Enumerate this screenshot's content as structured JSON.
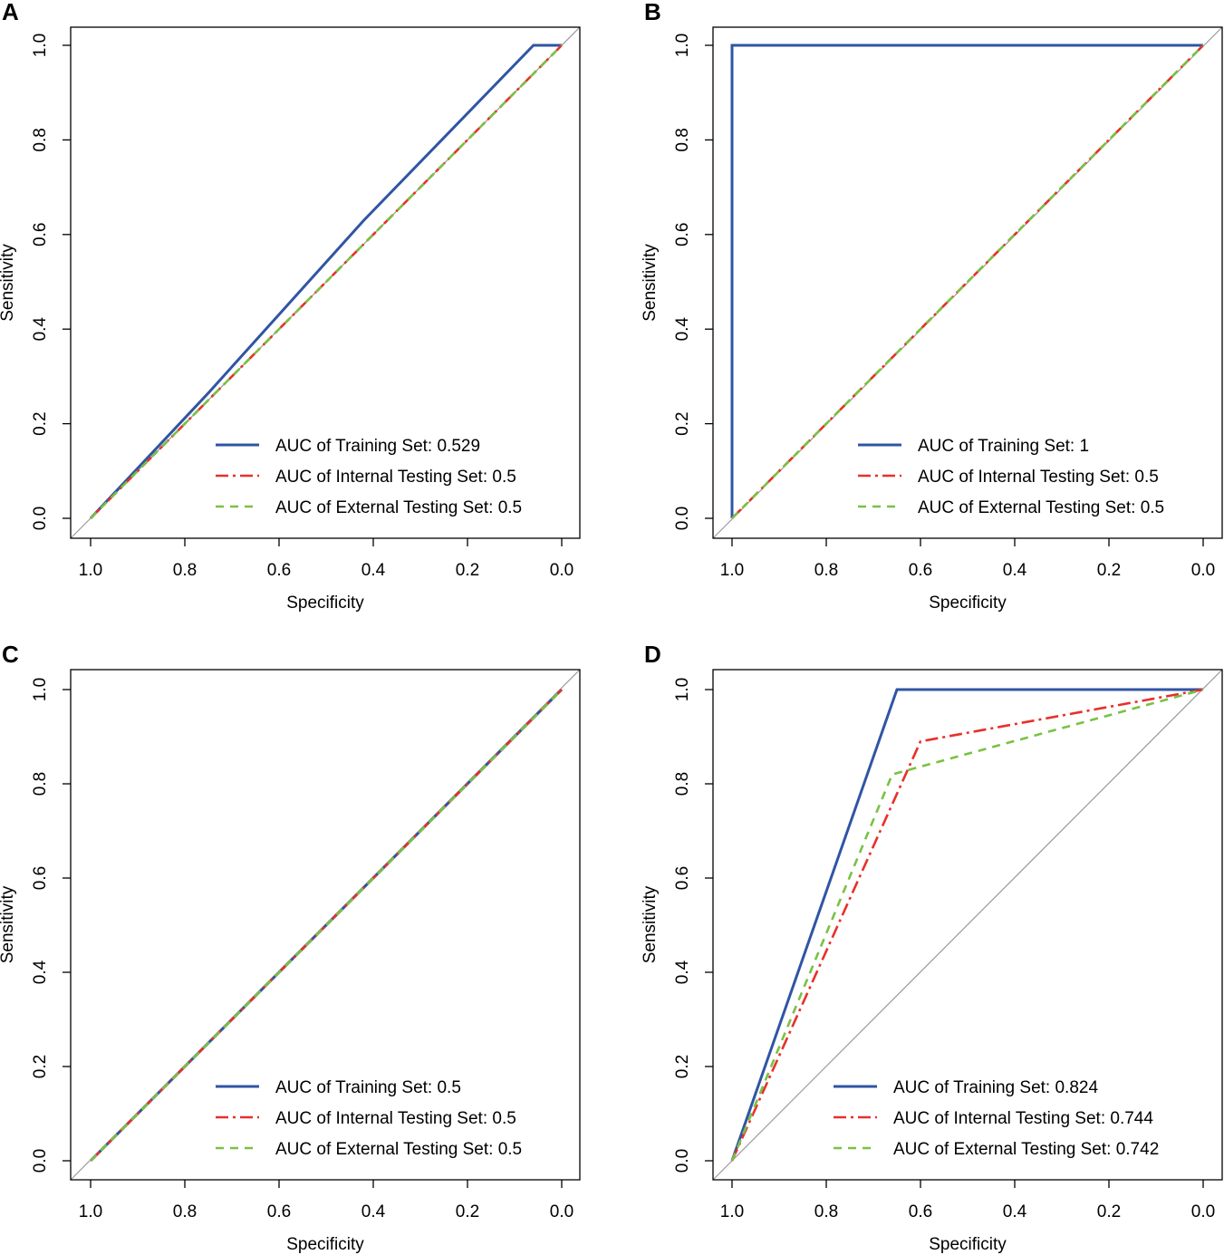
{
  "figure": {
    "x_axis_title": "Specificity",
    "y_axis_title": "Sensitivity"
  },
  "colors": {
    "training": "#2f55a4",
    "internal": "#e8302b",
    "external": "#7ac143",
    "diagonal": "#9a9a9a"
  },
  "chart_data": [
    {
      "panel": "A",
      "type": "line",
      "xlabel": "Specificity",
      "ylabel": "Sensitivity",
      "xlim": [
        1.0,
        0.0
      ],
      "ylim": [
        0.0,
        1.0
      ],
      "x_ticks": [
        "1.0",
        "0.8",
        "0.6",
        "0.4",
        "0.2",
        "0.0"
      ],
      "y_ticks": [
        "0.0",
        "0.2",
        "0.4",
        "0.6",
        "0.8",
        "1.0"
      ],
      "legend_position": "bottom-right",
      "series": [
        {
          "name": "AUC of Training Set: 0.529",
          "style": "solid",
          "color_key": "training",
          "specificity": [
            1.0,
            0.75,
            0.42,
            0.06,
            0.0
          ],
          "sensitivity": [
            0.0,
            0.265,
            0.63,
            1.0,
            1.0
          ]
        },
        {
          "name": "AUC of Internal Testing Set: 0.5",
          "style": "dashdot",
          "color_key": "internal",
          "specificity": [
            1.0,
            0.0
          ],
          "sensitivity": [
            0.0,
            1.0
          ]
        },
        {
          "name": "AUC of External Testing Set: 0.5",
          "style": "dashed",
          "color_key": "external",
          "specificity": [
            1.0,
            0.0
          ],
          "sensitivity": [
            0.0,
            1.0
          ]
        }
      ]
    },
    {
      "panel": "B",
      "type": "line",
      "xlabel": "Specificity",
      "ylabel": "Sensitivity",
      "xlim": [
        1.0,
        0.0
      ],
      "ylim": [
        0.0,
        1.0
      ],
      "x_ticks": [
        "1.0",
        "0.8",
        "0.6",
        "0.4",
        "0.2",
        "0.0"
      ],
      "y_ticks": [
        "0.0",
        "0.2",
        "0.4",
        "0.6",
        "0.8",
        "1.0"
      ],
      "legend_position": "bottom-right",
      "series": [
        {
          "name": "AUC of Training Set: 1",
          "style": "solid",
          "color_key": "training",
          "specificity": [
            1.0,
            1.0,
            0.0
          ],
          "sensitivity": [
            0.0,
            1.0,
            1.0
          ]
        },
        {
          "name": "AUC of Internal Testing Set: 0.5",
          "style": "dashdot",
          "color_key": "internal",
          "specificity": [
            1.0,
            0.0
          ],
          "sensitivity": [
            0.0,
            1.0
          ]
        },
        {
          "name": "AUC of External Testing Set: 0.5",
          "style": "dashed",
          "color_key": "external",
          "specificity": [
            1.0,
            0.0
          ],
          "sensitivity": [
            0.0,
            1.0
          ]
        }
      ]
    },
    {
      "panel": "C",
      "type": "line",
      "xlabel": "Specificity",
      "ylabel": "Sensitivity",
      "xlim": [
        1.0,
        0.0
      ],
      "ylim": [
        0.0,
        1.0
      ],
      "x_ticks": [
        "1.0",
        "0.8",
        "0.6",
        "0.4",
        "0.2",
        "0.0"
      ],
      "y_ticks": [
        "0.0",
        "0.2",
        "0.4",
        "0.6",
        "0.8",
        "1.0"
      ],
      "legend_position": "bottom-right",
      "series": [
        {
          "name": "AUC of Training Set: 0.5",
          "style": "solid",
          "color_key": "training",
          "specificity": [
            1.0,
            0.0
          ],
          "sensitivity": [
            0.0,
            1.0
          ]
        },
        {
          "name": "AUC of Internal Testing Set: 0.5",
          "style": "dashdot",
          "color_key": "internal",
          "specificity": [
            1.0,
            0.0
          ],
          "sensitivity": [
            0.0,
            1.0
          ]
        },
        {
          "name": "AUC of External Testing Set: 0.5",
          "style": "dashed",
          "color_key": "external",
          "specificity": [
            1.0,
            0.0
          ],
          "sensitivity": [
            0.0,
            1.0
          ]
        }
      ]
    },
    {
      "panel": "D",
      "type": "line",
      "xlabel": "Specificity",
      "ylabel": "Sensitivity",
      "xlim": [
        1.0,
        0.0
      ],
      "ylim": [
        0.0,
        1.0
      ],
      "x_ticks": [
        "1.0",
        "0.8",
        "0.6",
        "0.4",
        "0.2",
        "0.0"
      ],
      "y_ticks": [
        "0.0",
        "0.2",
        "0.4",
        "0.6",
        "0.8",
        "1.0"
      ],
      "legend_position": "bottom-right",
      "series": [
        {
          "name": "AUC of Training Set: 0.824",
          "style": "solid",
          "color_key": "training",
          "specificity": [
            1.0,
            0.65,
            0.0
          ],
          "sensitivity": [
            0.0,
            1.0,
            1.0
          ]
        },
        {
          "name": "AUC of Internal Testing Set: 0.744",
          "style": "dashdot",
          "color_key": "internal",
          "specificity": [
            1.0,
            0.6,
            0.0
          ],
          "sensitivity": [
            0.0,
            0.89,
            1.0
          ]
        },
        {
          "name": "AUC of External Testing Set: 0.742",
          "style": "dashed",
          "color_key": "external",
          "specificity": [
            1.0,
            0.66,
            0.0
          ],
          "sensitivity": [
            0.0,
            0.82,
            1.0
          ]
        }
      ]
    }
  ]
}
